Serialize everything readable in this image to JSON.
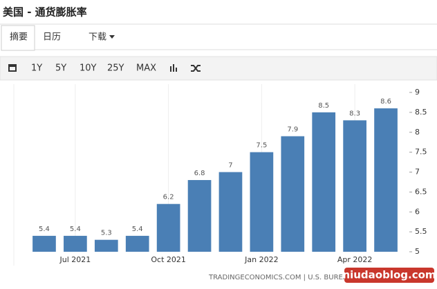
{
  "header": {
    "title": "美国 - 通货膨胀率"
  },
  "tabs": [
    "摘要",
    "日历",
    "下载"
  ],
  "toolbar": [
    "1Y",
    "5Y",
    "10Y",
    "25Y",
    "MAX"
  ],
  "chart_data": {
    "type": "bar",
    "categories": [
      null,
      "Jul 2021",
      null,
      null,
      "Oct 2021",
      null,
      null,
      "Jan 2022",
      null,
      null,
      "Apr 2022",
      null
    ],
    "values": [
      5.4,
      5.4,
      5.3,
      5.4,
      6.2,
      6.8,
      7,
      7.5,
      7.9,
      8.5,
      8.3,
      8.6
    ],
    "color": "#4a7fb5",
    "ylim": [
      5,
      9
    ],
    "yticks": [
      5,
      5.5,
      6,
      6.5,
      7,
      7.5,
      8,
      8.5,
      9
    ],
    "y_axis_side": "right"
  },
  "footer": {
    "source": "TRADINGECONOMICS.COM | U.S. BUREAU OF LABOR STATISTICS",
    "watermark": "niudaoblog.com"
  }
}
